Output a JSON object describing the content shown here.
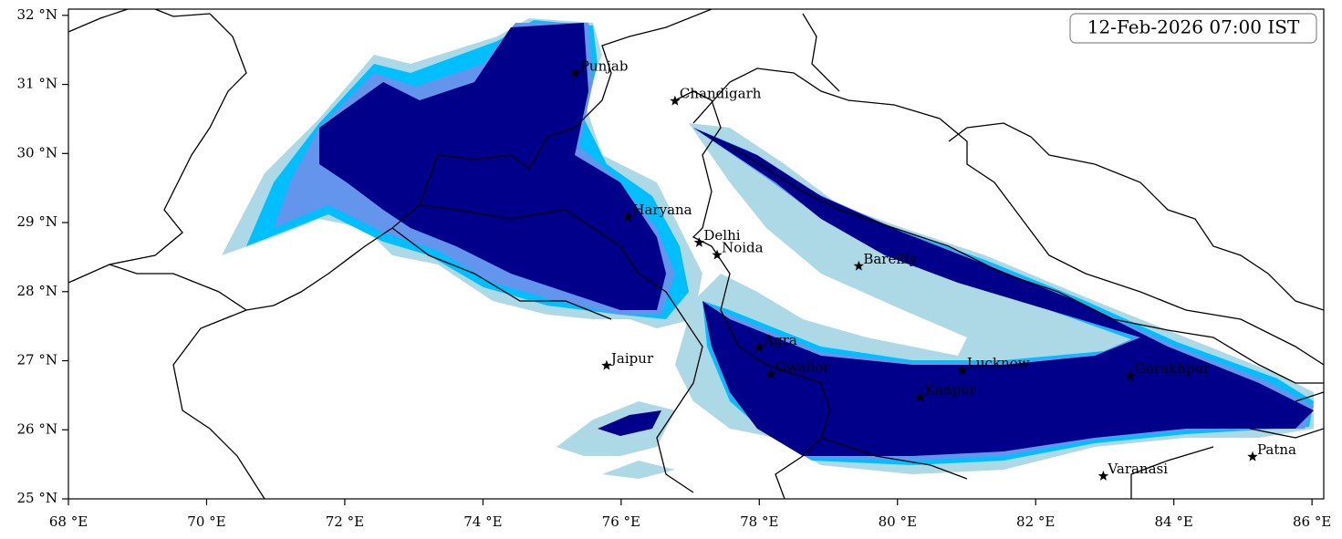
{
  "timestamp": "12-Feb-2026 07:00 IST",
  "map": {
    "xlim": [
      68,
      86.17
    ],
    "ylim": [
      25,
      32.09
    ],
    "xticks": [
      {
        "value": 68,
        "label": "68 °E"
      },
      {
        "value": 70,
        "label": "70 °E"
      },
      {
        "value": 72,
        "label": "72 °E"
      },
      {
        "value": 74,
        "label": "74 °E"
      },
      {
        "value": 76,
        "label": "76 °E"
      },
      {
        "value": 78,
        "label": "78 °E"
      },
      {
        "value": 80,
        "label": "80 °E"
      },
      {
        "value": 82,
        "label": "82 °E"
      },
      {
        "value": 84,
        "label": "84 °E"
      },
      {
        "value": 86,
        "label": "86 °E"
      }
    ],
    "yticks": [
      {
        "value": 25,
        "label": "25 °N"
      },
      {
        "value": 26,
        "label": "26 °N"
      },
      {
        "value": 27,
        "label": "27 °N"
      },
      {
        "value": 28,
        "label": "28 °N"
      },
      {
        "value": 29,
        "label": "29 °N"
      },
      {
        "value": 30,
        "label": "30 °N"
      },
      {
        "value": 31,
        "label": "31 °N"
      },
      {
        "value": 32,
        "label": "32 °N"
      }
    ],
    "cities": [
      {
        "name": "Punjab",
        "lon": 75.34,
        "lat": 31.16
      },
      {
        "name": "Chandigarh",
        "lon": 76.78,
        "lat": 30.76
      },
      {
        "name": "Haryana",
        "lon": 76.1,
        "lat": 29.08
      },
      {
        "name": "Delhi",
        "lon": 77.13,
        "lat": 28.71
      },
      {
        "name": "Noida",
        "lon": 77.39,
        "lat": 28.53
      },
      {
        "name": "Bareilly",
        "lon": 79.44,
        "lat": 28.37
      },
      {
        "name": "Agra",
        "lon": 78.0,
        "lat": 27.19
      },
      {
        "name": "Jaipur",
        "lon": 75.79,
        "lat": 26.93
      },
      {
        "name": "Gwalior",
        "lon": 78.17,
        "lat": 26.8
      },
      {
        "name": "Lucknow",
        "lon": 80.94,
        "lat": 26.86
      },
      {
        "name": "Kanpur",
        "lon": 80.33,
        "lat": 26.47
      },
      {
        "name": "Gorakhpur",
        "lon": 83.37,
        "lat": 26.78
      },
      {
        "name": "Varanasi",
        "lon": 82.98,
        "lat": 25.33
      },
      {
        "name": "Patna",
        "lon": 85.14,
        "lat": 25.61
      }
    ]
  }
}
